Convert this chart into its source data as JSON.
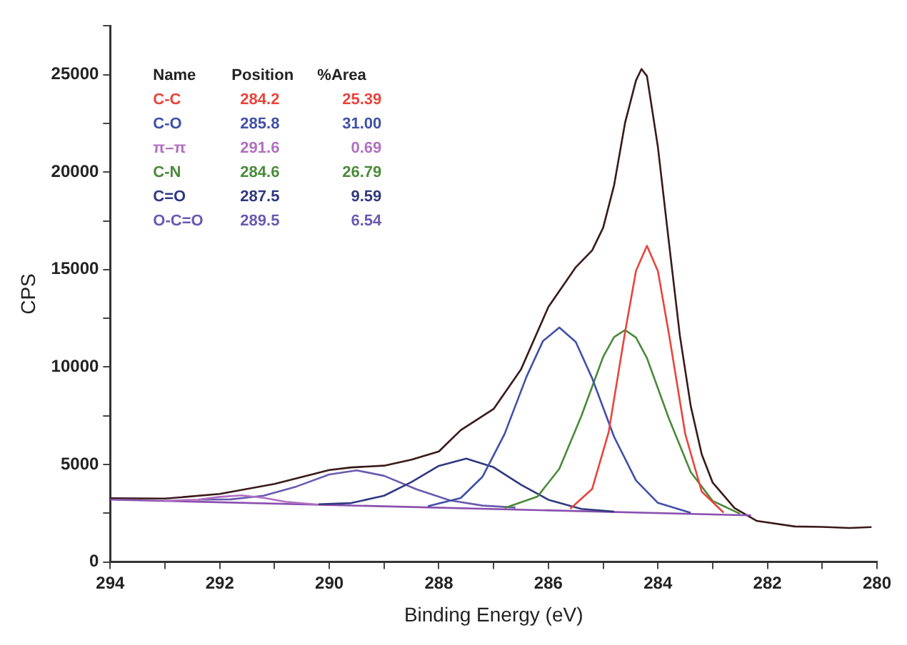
{
  "chart_data": {
    "type": "line",
    "xlabel": "Binding Energy (eV)",
    "ylabel": "CPS",
    "xlim": [
      294,
      280
    ],
    "xticks": [
      294,
      {
        "value": 293,
        "label": null
      },
      292,
      {
        "value": 291,
        "label": null
      },
      290,
      {
        "value": 289,
        "label": null
      },
      288,
      {
        "value": 287,
        "label": null
      },
      286,
      {
        "value": 285,
        "label": null
      },
      284,
      {
        "value": 283,
        "label": null
      },
      282,
      {
        "value": 281,
        "label": null
      },
      280
    ],
    "ylim": [
      0,
      27500
    ],
    "yticks": [
      0,
      {
        "value": 2500,
        "label": null
      },
      5000,
      {
        "value": 7500,
        "label": null
      },
      10000,
      {
        "value": 12500,
        "label": null
      },
      15000,
      {
        "value": 17500,
        "label": null
      },
      20000,
      {
        "value": 22500,
        "label": null
      },
      25000,
      {
        "value": 27500,
        "label": null
      }
    ],
    "grid": false,
    "legend": false,
    "marker": "none",
    "line_style": "solid",
    "annotations": [
      "Name",
      "Position",
      "%Area",
      "284.2",
      "25.39",
      "285.8",
      "31.00",
      "291.6",
      "0.69",
      "284.6",
      "26.79",
      "287.5",
      "9.59",
      "289.5",
      "6.54"
    ],
    "series": [
      {
        "name": "C-C",
        "color": "#e8453c",
        "x": [
          285.6,
          285.2,
          284.9,
          284.6,
          284.4,
          284.2,
          284.0,
          283.8,
          283.5,
          283.2,
          282.8
        ],
        "values": [
          2730,
          3750,
          6650,
          11780,
          14940,
          16220,
          14920,
          11720,
          6550,
          3610,
          2530
        ]
      },
      {
        "name": "C-O",
        "color": "#4050a8",
        "x": [
          288.2,
          287.6,
          287.2,
          286.8,
          286.4,
          286.1,
          285.8,
          285.5,
          285.2,
          284.8,
          284.4,
          284.0,
          283.4
        ],
        "values": [
          2860,
          3280,
          4380,
          6560,
          9500,
          11330,
          12030,
          11290,
          9420,
          6420,
          4180,
          3030,
          2520
        ]
      },
      {
        "name": "π–π",
        "color": "#b070c0",
        "x": [
          293.0,
          292.4,
          292.0,
          291.6,
          291.2,
          290.8,
          290.2
        ],
        "values": [
          3140,
          3200,
          3340,
          3420,
          3290,
          3090,
          2940
        ]
      },
      {
        "name": "C-N",
        "color": "#4a8a3a",
        "x": [
          286.8,
          286.2,
          285.8,
          285.4,
          285.0,
          284.8,
          284.6,
          284.4,
          284.2,
          283.8,
          283.4,
          283.0,
          282.5
        ],
        "values": [
          2770,
          3350,
          4780,
          7470,
          10520,
          11540,
          11900,
          11510,
          10460,
          7360,
          4610,
          3130,
          2470
        ]
      },
      {
        "name": "C=O",
        "color": "#303880",
        "x": [
          290.2,
          289.6,
          289.0,
          288.5,
          288.0,
          287.5,
          287.0,
          286.5,
          286.0,
          285.4,
          284.8
        ],
        "values": [
          2960,
          3020,
          3400,
          4100,
          4930,
          5300,
          4860,
          3960,
          3190,
          2720,
          2580
        ]
      },
      {
        "name": "O-C=O",
        "color": "#6a5ab0",
        "x": [
          292.4,
          291.8,
          291.2,
          290.6,
          290.0,
          289.5,
          289.0,
          288.4,
          287.8,
          287.2,
          286.6
        ],
        "values": [
          3200,
          3210,
          3400,
          3870,
          4490,
          4700,
          4420,
          3720,
          3160,
          2890,
          2790
        ]
      },
      {
        "color": "#8a4fb0",
        "x": [
          294,
          282.3
        ],
        "values": [
          3200,
          2390
        ]
      },
      {
        "color": "#3a1a1a",
        "x": [
          294,
          293,
          292,
          291,
          290,
          289.6,
          289,
          288.5,
          288,
          287.6,
          287,
          286.5,
          286,
          285.5,
          285.2,
          285,
          284.8,
          284.6,
          284.4,
          284.3,
          284.2,
          284.0,
          283.8,
          283.6,
          283.4,
          283.2,
          283.0,
          282.6,
          282.2,
          281.5,
          281,
          280.5,
          280.1
        ],
        "values": [
          3270,
          3250,
          3490,
          4000,
          4720,
          4850,
          4940,
          5250,
          5670,
          6760,
          7850,
          9880,
          13080,
          15120,
          15990,
          17150,
          19330,
          22530,
          24710,
          25290,
          24930,
          21290,
          16420,
          11630,
          7990,
          5520,
          4070,
          2760,
          2110,
          1820,
          1800,
          1740,
          1790
        ]
      }
    ]
  }
}
